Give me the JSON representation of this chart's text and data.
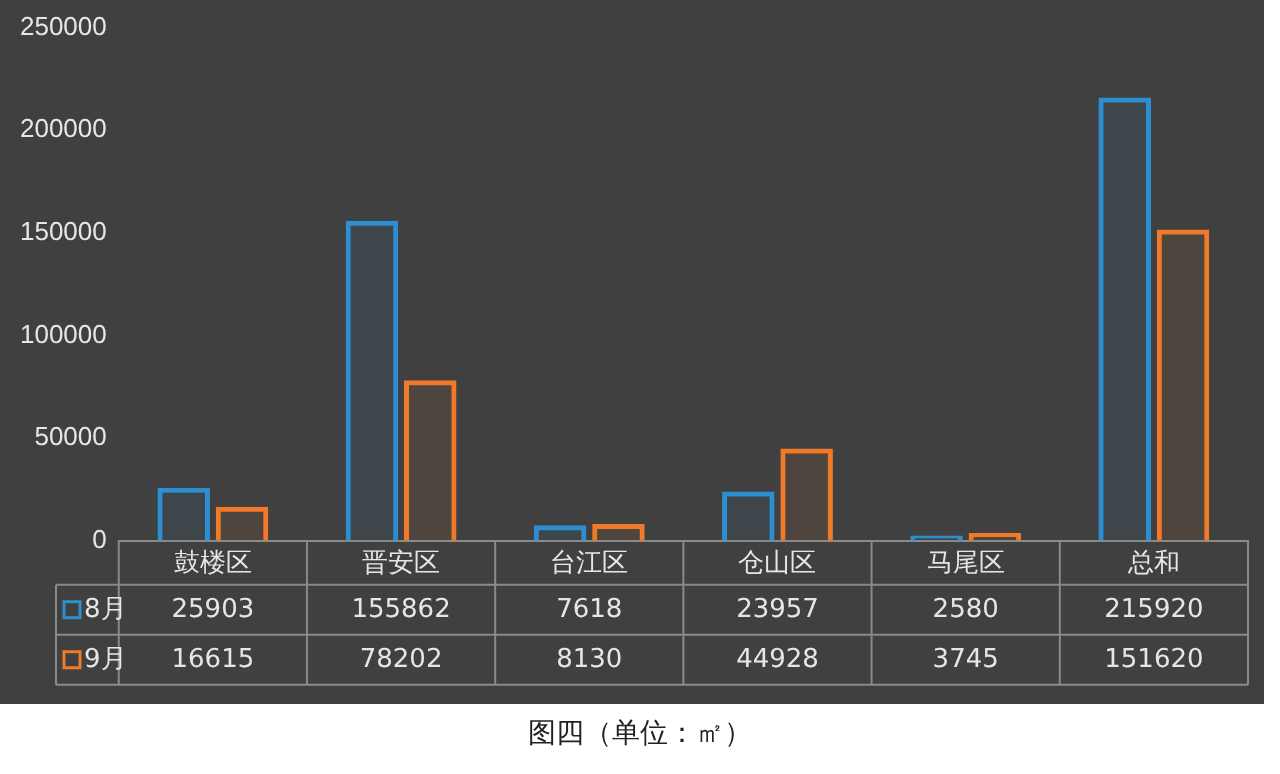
{
  "chart_data": {
    "type": "bar",
    "categories": [
      "鼓楼区",
      "晋安区",
      "台江区",
      "仓山区",
      "马尾区",
      "总和"
    ],
    "series": [
      {
        "name": "8月",
        "color": "#2e8fd0",
        "values": [
          25903,
          155862,
          7618,
          23957,
          2580,
          215920
        ]
      },
      {
        "name": "9月",
        "color": "#f07a2a",
        "values": [
          16615,
          78202,
          8130,
          44928,
          3745,
          151620
        ]
      }
    ],
    "ylim": [
      0,
      250000
    ],
    "yticks": [
      0,
      50000,
      100000,
      150000,
      200000,
      250000
    ],
    "grid": false,
    "legend": "bottom",
    "data_labels": true,
    "annotations": [
      "图四（单位：㎡）"
    ]
  }
}
